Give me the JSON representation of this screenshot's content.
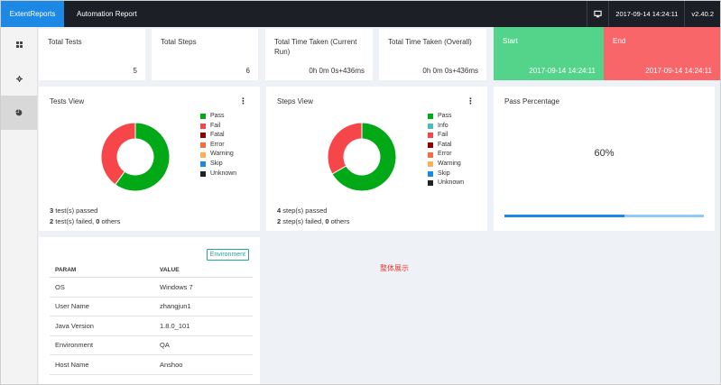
{
  "nav": {
    "brand": "ExtentReports",
    "title": "Automation Report",
    "datetime": "2017-09-14 14:24:11",
    "version": "v2.40.2",
    "monitor_icon": "monitor-icon"
  },
  "sidebar": {
    "items": [
      {
        "icon": "dashboard-icon",
        "active": false
      },
      {
        "icon": "gear-icon",
        "active": false
      },
      {
        "icon": "pie-chart-icon",
        "active": true
      }
    ]
  },
  "stats": {
    "total_tests": {
      "label": "Total Tests",
      "value": "5"
    },
    "total_steps": {
      "label": "Total Steps",
      "value": "6"
    },
    "time_current": {
      "label": "Total Time Taken (Current Run)",
      "value": "0h 0m 0s+436ms"
    },
    "time_overall": {
      "label": "Total Time Taken (Overall)",
      "value": "0h 0m 0s+436ms"
    },
    "start": {
      "label": "Start",
      "value": "2017-09-14 14:24:11"
    },
    "end": {
      "label": "End",
      "value": "2017-09-14 14:24:11"
    }
  },
  "tests_view": {
    "title": "Tests View",
    "menu": "⋮",
    "legend": [
      "Pass",
      "Fail",
      "Fatal",
      "Error",
      "Warning",
      "Skip",
      "Unknown"
    ],
    "summary_line1_num": "3",
    "summary_line1_text": " test(s) passed",
    "summary_line2_num1": "2",
    "summary_line2_text1": " test(s) failed, ",
    "summary_line2_num2": "0",
    "summary_line2_text2": " others"
  },
  "steps_view": {
    "title": "Steps View",
    "menu": "⋮",
    "legend": [
      "Pass",
      "Info",
      "Fail",
      "Fatal",
      "Error",
      "Warning",
      "Skip",
      "Unknown"
    ],
    "summary_line1_num": "4",
    "summary_line1_text": " step(s) passed",
    "summary_line2_num1": "2",
    "summary_line2_text1": " step(s) failed, ",
    "summary_line2_num2": "0",
    "summary_line2_text2": " others"
  },
  "pass_percentage": {
    "title": "Pass Percentage",
    "value_text": "60%",
    "fraction": 0.6
  },
  "environment": {
    "button": "Environment",
    "headers": [
      "PARAM",
      "VALUE"
    ],
    "rows": [
      [
        "OS",
        "Windows 7"
      ],
      [
        "User Name",
        "zhangjun1"
      ],
      [
        "Java Version",
        "1.8.0_101"
      ],
      [
        "Environment",
        "QA"
      ],
      [
        "Host Name",
        "Anshoo"
      ]
    ]
  },
  "annotation": "整体展示",
  "colors": {
    "pass": "#00a915",
    "info": "#46bfbd",
    "fail": "#f7464a",
    "fatal": "#8b0000",
    "error": "#f86c43",
    "warning": "#ffae52",
    "skip": "#1e88e5",
    "unknown": "#222222"
  },
  "chart_data": [
    {
      "type": "pie",
      "categories": [
        "Pass",
        "Fail"
      ],
      "values": [
        3,
        2
      ]
    },
    {
      "type": "pie",
      "categories": [
        "Pass",
        "Fail"
      ],
      "values": [
        4,
        2
      ]
    }
  ]
}
